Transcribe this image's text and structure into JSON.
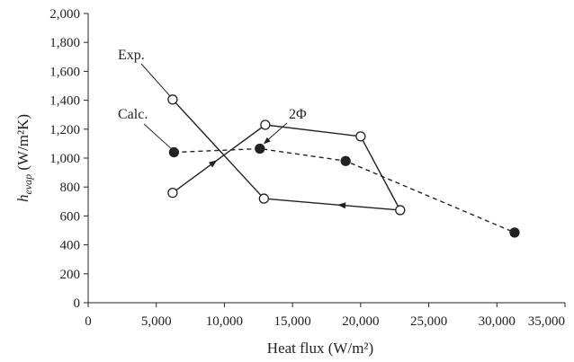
{
  "chart_data": {
    "type": "line",
    "xlabel": "Heat flux (W/m²)",
    "ylabel_main": "h",
    "ylabel_sub": "evap",
    "ylabel_units": " (W/m²K)",
    "xlim": [
      0,
      35000
    ],
    "ylim": [
      0,
      2000
    ],
    "xticks": [
      0,
      5000,
      10000,
      15000,
      20000,
      25000,
      30000,
      35000
    ],
    "xtick_labels": [
      "0",
      "5,000",
      "10,000",
      "15,000",
      "20,000",
      "25,000",
      "30,000",
      "35,000"
    ],
    "yticks": [
      0,
      200,
      400,
      600,
      800,
      1000,
      1200,
      1400,
      1600,
      1800,
      2000
    ],
    "ytick_labels": [
      "0",
      "200",
      "400",
      "600",
      "800",
      "1,000",
      "1,200",
      "1,400",
      "1,600",
      "1,800",
      "2,000"
    ],
    "grid": false,
    "series": [
      {
        "name": "Exp.",
        "marker": "open-circle",
        "line": "solid",
        "color": "#222222",
        "x": [
          6200,
          13000,
          20000,
          22900,
          12900,
          6200
        ],
        "y": [
          760,
          1230,
          1150,
          640,
          720,
          1405
        ]
      },
      {
        "name": "Calc.",
        "marker": "filled-circle",
        "line": "dashed",
        "color": "#222222",
        "x": [
          6300,
          12600,
          18900,
          31300
        ],
        "y": [
          1040,
          1065,
          980,
          485
        ]
      }
    ],
    "annotations": [
      {
        "text": "Exp.",
        "target": "series-0"
      },
      {
        "text": "Calc.",
        "target": "series-1"
      },
      {
        "text": "2Φ",
        "target": "series-1"
      }
    ]
  }
}
